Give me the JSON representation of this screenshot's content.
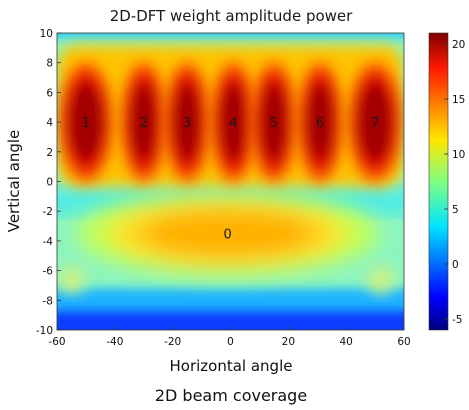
{
  "figure": {
    "caption": "2D beam coverage"
  },
  "chart_data": {
    "type": "heatmap",
    "title": "2D-DFT weight amplitude power",
    "xlabel": "Horizontal angle",
    "ylabel": "Vertical angle",
    "xlim": [
      -60,
      60
    ],
    "ylim": [
      -10,
      10
    ],
    "x_ticks": [
      -60,
      -40,
      -20,
      0,
      20,
      40,
      60
    ],
    "y_ticks": [
      -10,
      -8,
      -6,
      -4,
      -2,
      0,
      2,
      4,
      6,
      8,
      10
    ],
    "colorbar": {
      "colormap": "jet",
      "range": [
        -6,
        21
      ],
      "ticks": [
        -5,
        0,
        5,
        10,
        15,
        20
      ]
    },
    "beams": [
      {
        "label": "1",
        "h_angle": -50,
        "v_angle": 4,
        "peak": 21
      },
      {
        "label": "2",
        "h_angle": -30,
        "v_angle": 4,
        "peak": 21
      },
      {
        "label": "3",
        "h_angle": -15,
        "v_angle": 4,
        "peak": 21
      },
      {
        "label": "4",
        "h_angle": 1,
        "v_angle": 4,
        "peak": 21
      },
      {
        "label": "5",
        "h_angle": 15,
        "v_angle": 4,
        "peak": 21
      },
      {
        "label": "6",
        "h_angle": 31,
        "v_angle": 4,
        "peak": 21
      },
      {
        "label": "7",
        "h_angle": 50,
        "v_angle": 4,
        "peak": 21
      },
      {
        "label": "0",
        "h_angle": -1,
        "v_angle": -3.5,
        "peak": 14
      }
    ]
  }
}
